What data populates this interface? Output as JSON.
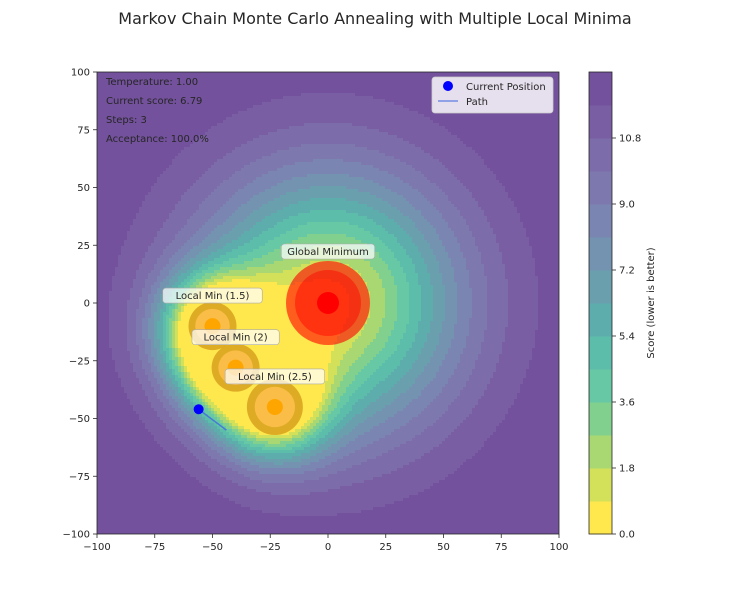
{
  "chart_data": {
    "type": "contour",
    "title": "Markov Chain Monte Carlo Annealing with Multiple Local Minima",
    "xlim": [
      -100,
      100
    ],
    "ylim": [
      -100,
      100
    ],
    "x_ticks": [
      -100,
      -75,
      -50,
      -25,
      0,
      25,
      50,
      75,
      100
    ],
    "y_ticks": [
      -100,
      -75,
      -50,
      -25,
      0,
      25,
      50,
      75,
      100
    ],
    "grid": false,
    "status": [
      {
        "text": "Temperature: 1.00"
      },
      {
        "text": "Current score: 6.79"
      },
      {
        "text": "Steps: 3"
      },
      {
        "text": "Acceptance: 100.0%"
      }
    ],
    "minima": [
      {
        "label": "Global Minimum",
        "x": 0,
        "y": 0,
        "score": 0.0,
        "type": "global",
        "color": "#ff0000"
      },
      {
        "label": "Local Min (1.5)",
        "x": -50,
        "y": -10,
        "score": 1.5,
        "type": "local",
        "color": "#ffa500"
      },
      {
        "label": "Local Min (2)",
        "x": -40,
        "y": -28,
        "score": 2.0,
        "type": "local",
        "color": "#ffa500"
      },
      {
        "label": "Local Min (2.5)",
        "x": -23,
        "y": -45,
        "score": 2.5,
        "type": "local",
        "color": "#ffa500"
      }
    ],
    "path": {
      "name": "Path",
      "x": [
        -56,
        -44,
        -48,
        -56
      ],
      "y": [
        -46,
        -55,
        -52,
        -46
      ],
      "color": "#4169e1"
    },
    "current_position": {
      "name": "Current Position",
      "x": -56,
      "y": -46,
      "color": "#0000ff"
    },
    "legend_position": "top-right",
    "colorbar": {
      "label": "Score (lower is better)",
      "ticks": [
        0.0,
        1.8,
        3.6,
        5.4,
        7.2,
        9.0,
        10.8
      ],
      "levels": [
        0,
        0.9,
        1.8,
        2.7,
        3.6,
        4.5,
        5.4,
        6.3,
        7.2,
        8.1,
        9.0,
        9.9,
        10.8,
        11.7,
        12.6
      ],
      "colors": [
        "#ffe84d",
        "#d3e05a",
        "#a9d873",
        "#82d08e",
        "#67c8a6",
        "#5cbdaa",
        "#5eadad",
        "#6a9fae",
        "#7493b1",
        "#7a85b1",
        "#7d79ae",
        "#7d6caa",
        "#7a5ea3",
        "#73519c"
      ]
    }
  }
}
